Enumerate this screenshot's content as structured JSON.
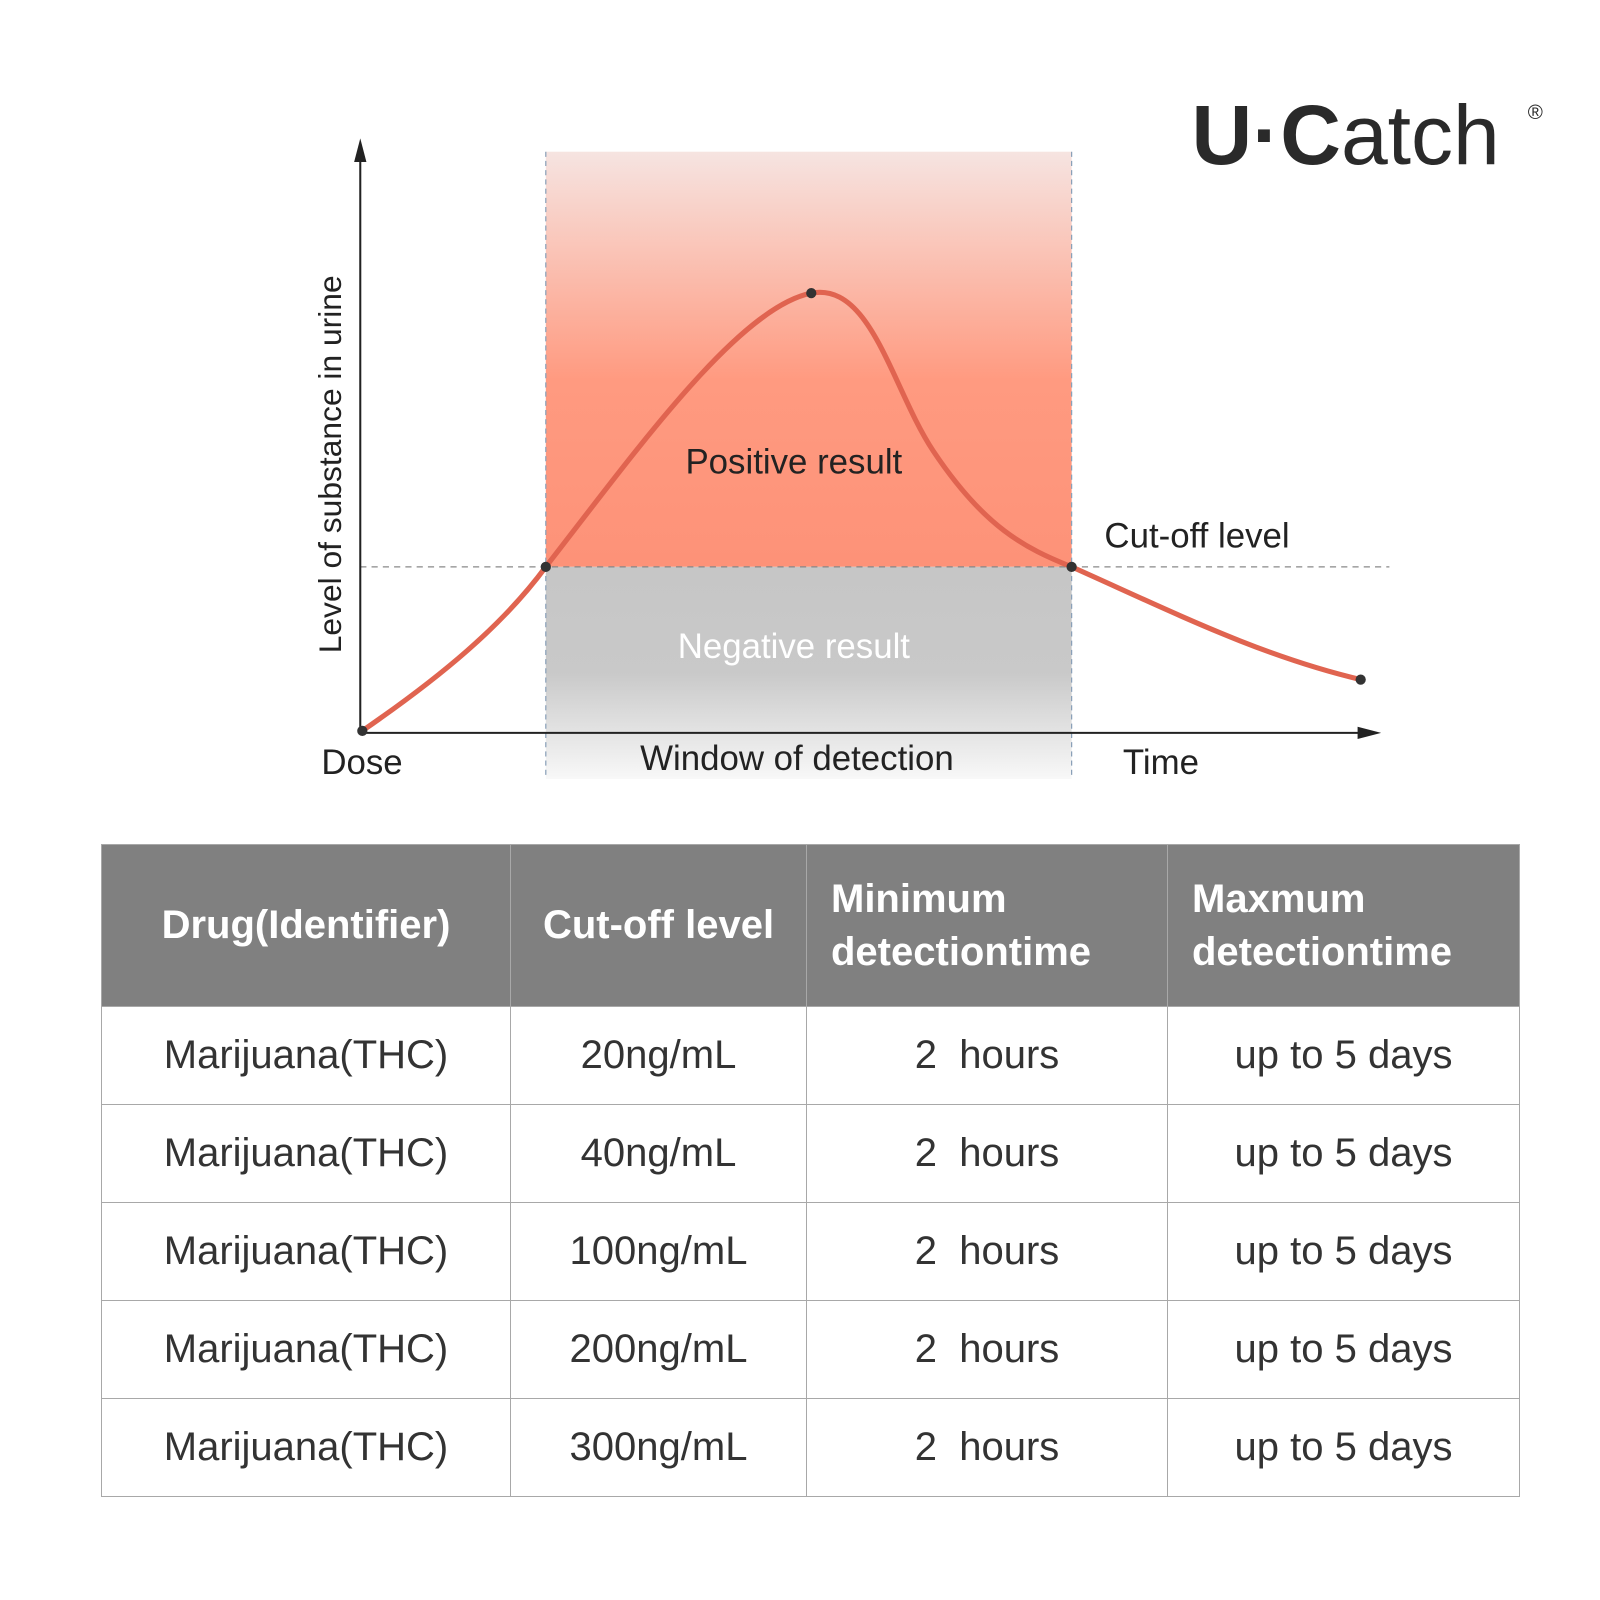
{
  "logo": {
    "bold": "U·C",
    "light": "atch",
    "mark": "®"
  },
  "diagram": {
    "y_axis": "Level of substance in urine",
    "positive": "Positive result",
    "negative": "Negative result",
    "cutoff": "Cut-off level",
    "dose": "Dose",
    "window": "Window of detection",
    "time": "Time"
  },
  "table": {
    "header": [
      "Drug(Identifier)",
      "Cut-off level",
      "Minimum detectiontime",
      "Maxmum detectiontime"
    ],
    "rows": [
      [
        "Marijuana(THC)",
        "20ng/mL",
        "2  hours",
        "up to 5 days"
      ],
      [
        "Marijuana(THC)",
        "40ng/mL",
        "2  hours",
        "up to 5 days"
      ],
      [
        "Marijuana(THC)",
        "100ng/mL",
        "2  hours",
        "up to 5 days"
      ],
      [
        "Marijuana(THC)",
        "200ng/mL",
        "2  hours",
        "up to 5 days"
      ],
      [
        "Marijuana(THC)",
        "300ng/mL",
        "2  hours",
        "up to 5 days"
      ]
    ]
  }
}
